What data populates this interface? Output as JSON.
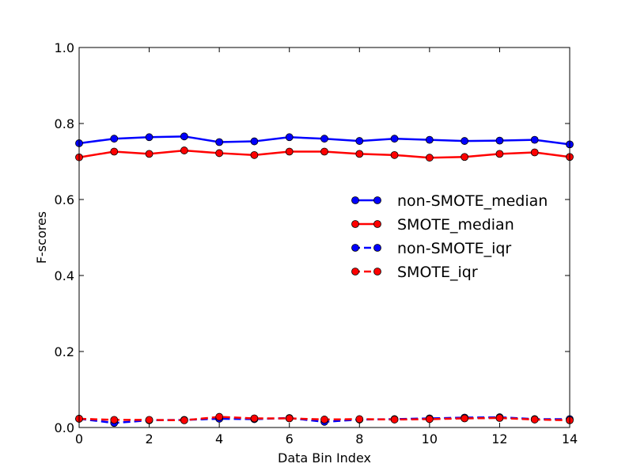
{
  "chart_data": {
    "type": "line",
    "title": "",
    "xlabel": "Data Bin Index",
    "ylabel": "F-scores",
    "xlim": [
      0,
      14
    ],
    "ylim": [
      0.0,
      1.0
    ],
    "xticks": [
      0,
      2,
      4,
      6,
      8,
      10,
      12,
      14
    ],
    "yticks": [
      0.0,
      0.2,
      0.4,
      0.6,
      0.8,
      1.0
    ],
    "grid": false,
    "legend": "center-right",
    "x": [
      0,
      1,
      2,
      3,
      4,
      5,
      6,
      7,
      8,
      9,
      10,
      11,
      12,
      13,
      14
    ],
    "series": [
      {
        "name": "non-SMOTE_median",
        "color": "#0000ff",
        "linestyle": "solid",
        "marker": "circle",
        "values": [
          0.748,
          0.76,
          0.764,
          0.766,
          0.751,
          0.753,
          0.764,
          0.76,
          0.754,
          0.76,
          0.757,
          0.754,
          0.755,
          0.757,
          0.745
        ]
      },
      {
        "name": "SMOTE_median",
        "color": "#ff0000",
        "linestyle": "solid",
        "marker": "circle",
        "values": [
          0.711,
          0.726,
          0.72,
          0.729,
          0.722,
          0.717,
          0.726,
          0.726,
          0.72,
          0.717,
          0.71,
          0.712,
          0.72,
          0.724,
          0.712
        ]
      },
      {
        "name": "non-SMOTE_iqr",
        "color": "#0000ff",
        "linestyle": "dashed",
        "marker": "circle",
        "values": [
          0.023,
          0.012,
          0.019,
          0.02,
          0.023,
          0.022,
          0.025,
          0.015,
          0.021,
          0.022,
          0.024,
          0.026,
          0.027,
          0.022,
          0.022
        ]
      },
      {
        "name": "SMOTE_iqr",
        "color": "#ff0000",
        "linestyle": "dashed",
        "marker": "circle",
        "values": [
          0.023,
          0.02,
          0.02,
          0.019,
          0.028,
          0.024,
          0.024,
          0.021,
          0.022,
          0.021,
          0.022,
          0.024,
          0.025,
          0.021,
          0.019
        ]
      }
    ]
  }
}
